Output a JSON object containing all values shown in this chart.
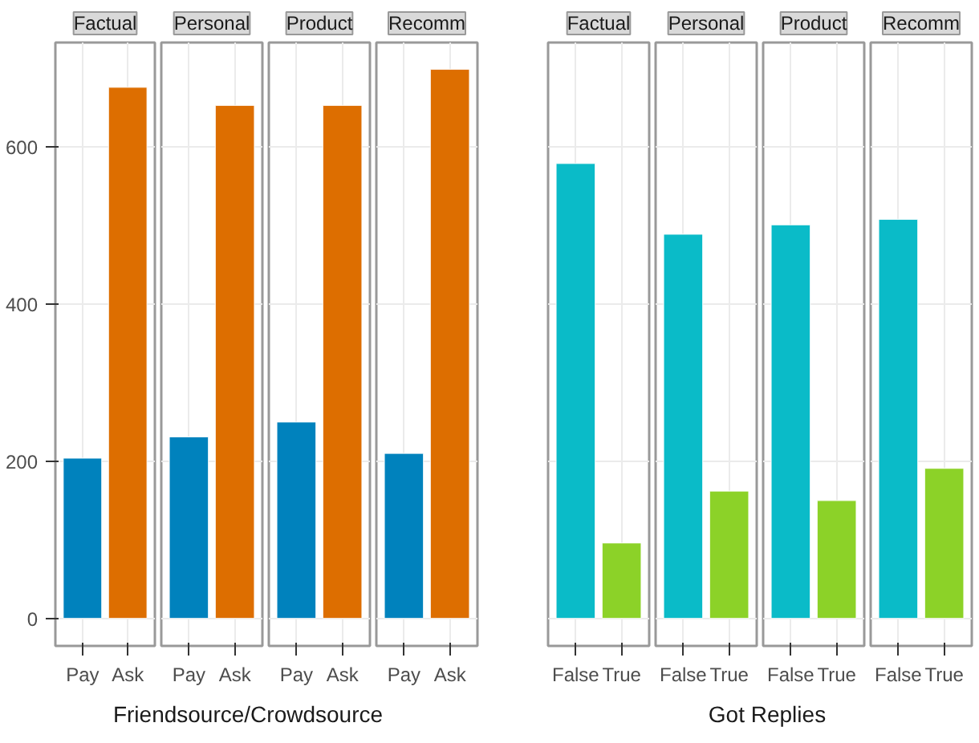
{
  "chart_data": [
    {
      "type": "bar",
      "title": "Factual",
      "xlabel": "Friendsource/Crowdsource",
      "categories": [
        "Pay",
        "Ask"
      ],
      "values": [
        204,
        676
      ],
      "colors": [
        "#0082bd",
        "#dd6e00"
      ],
      "ylim": [
        -35,
        733
      ],
      "yticks": [
        0,
        200,
        400,
        600
      ],
      "grid": true
    },
    {
      "type": "bar",
      "title": "Personal",
      "categories": [
        "Pay",
        "Ask"
      ],
      "values": [
        231,
        653
      ],
      "colors": [
        "#0082bd",
        "#dd6e00"
      ],
      "ylim": [
        -35,
        733
      ],
      "yticks": [
        0,
        200,
        400,
        600
      ],
      "grid": true,
      "tick_labels": "x"
    },
    {
      "type": "bar",
      "title": "Product",
      "categories": [
        "Pay",
        "Ask"
      ],
      "values": [
        250,
        653
      ],
      "colors": [
        "#0082bd",
        "#dd6e00"
      ],
      "ylim": [
        -35,
        733
      ],
      "yticks": [
        0,
        200,
        400,
        600
      ],
      "grid": true,
      "tick_labels": "x"
    },
    {
      "type": "bar",
      "title": "Recomm",
      "categories": [
        "Pay",
        "Ask"
      ],
      "values": [
        210,
        699
      ],
      "colors": [
        "#0082bd",
        "#dd6e00"
      ],
      "ylim": [
        -35,
        733
      ],
      "yticks": [
        0,
        200,
        400,
        600
      ],
      "grid": true,
      "tick_labels": "x"
    },
    {
      "type": "bar",
      "title": "Factual",
      "xlabel": "Got Replies",
      "categories": [
        "False",
        "True"
      ],
      "values": [
        579,
        96
      ],
      "colors": [
        "#0abbc8",
        "#8cd228"
      ],
      "ylim": [
        -35,
        733
      ],
      "yticks": [
        0,
        200,
        400,
        600
      ],
      "grid": true,
      "tick_labels": "x"
    },
    {
      "type": "bar",
      "title": "Personal",
      "categories": [
        "False",
        "True"
      ],
      "values": [
        489,
        162
      ],
      "colors": [
        "#0abbc8",
        "#8cd228"
      ],
      "ylim": [
        -35,
        733
      ],
      "yticks": [
        0,
        200,
        400,
        600
      ],
      "grid": true,
      "tick_labels": "x"
    },
    {
      "type": "bar",
      "title": "Product",
      "categories": [
        "False",
        "True"
      ],
      "values": [
        501,
        150
      ],
      "colors": [
        "#0abbc8",
        "#8cd228"
      ],
      "ylim": [
        -35,
        733
      ],
      "yticks": [
        0,
        200,
        400,
        600
      ],
      "grid": true,
      "tick_labels": "x"
    },
    {
      "type": "bar",
      "title": "Recomm",
      "categories": [
        "False",
        "True"
      ],
      "values": [
        508,
        191
      ],
      "colors": [
        "#0abbc8",
        "#8cd228"
      ],
      "ylim": [
        -35,
        733
      ],
      "yticks": [
        0,
        200,
        400,
        600
      ],
      "grid": true,
      "tick_labels": "x"
    }
  ]
}
